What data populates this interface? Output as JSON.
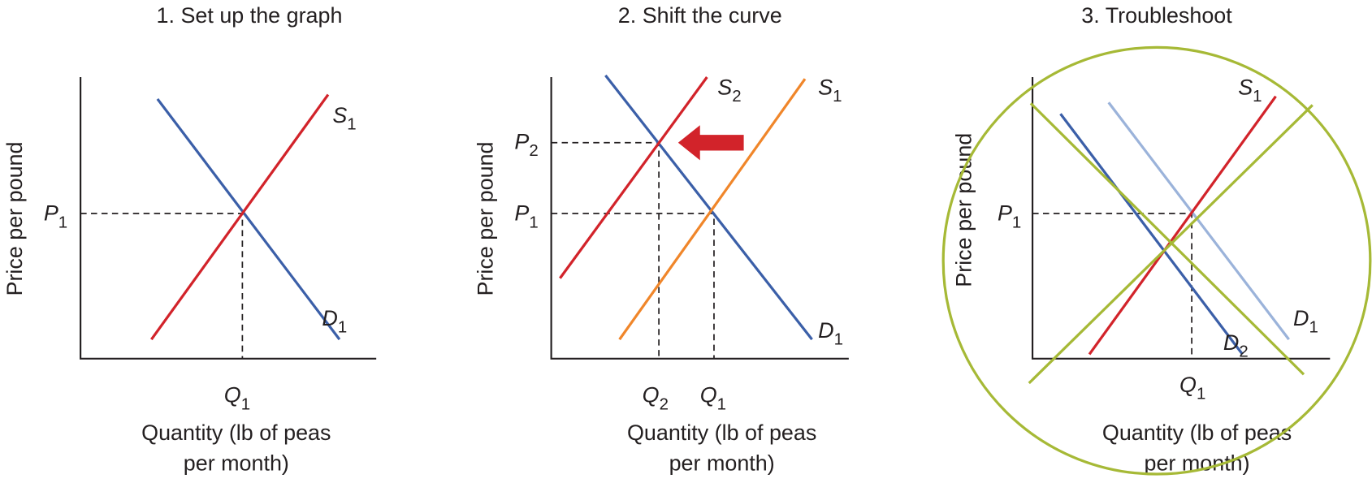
{
  "panels": [
    {
      "title": "1. Set up the graph",
      "y_axis_label": "Price per pound",
      "x_axis_label": [
        "Quantity (lb of peas",
        "per month)"
      ],
      "curve_labels": [
        {
          "letter": "S",
          "sub": "1"
        },
        {
          "letter": "D",
          "sub": "1"
        }
      ],
      "axis_labels": [
        {
          "letter": "P",
          "sub": "1"
        },
        {
          "letter": "Q",
          "sub": "1"
        }
      ]
    },
    {
      "title": "2. Shift the curve",
      "y_axis_label": "Price per pound",
      "x_axis_label": [
        "Quantity (lb of peas",
        "per month)"
      ],
      "curve_labels": [
        {
          "letter": "S",
          "sub": "2"
        },
        {
          "letter": "S",
          "sub": "1"
        },
        {
          "letter": "D",
          "sub": "1"
        }
      ],
      "axis_labels": [
        {
          "letter": "P",
          "sub": "2"
        },
        {
          "letter": "P",
          "sub": "1"
        },
        {
          "letter": "Q",
          "sub": "2"
        },
        {
          "letter": "Q",
          "sub": "1"
        }
      ]
    },
    {
      "title": "3. Troubleshoot",
      "y_axis_label": "Price per pound",
      "x_axis_label": [
        "Quantity (lb of peas",
        "per month)"
      ],
      "curve_labels": [
        {
          "letter": "S",
          "sub": "1"
        },
        {
          "letter": "D",
          "sub": "1"
        },
        {
          "letter": "D",
          "sub": "2"
        }
      ],
      "axis_labels": [
        {
          "letter": "P",
          "sub": "1"
        },
        {
          "letter": "Q",
          "sub": "1"
        }
      ]
    }
  ]
}
